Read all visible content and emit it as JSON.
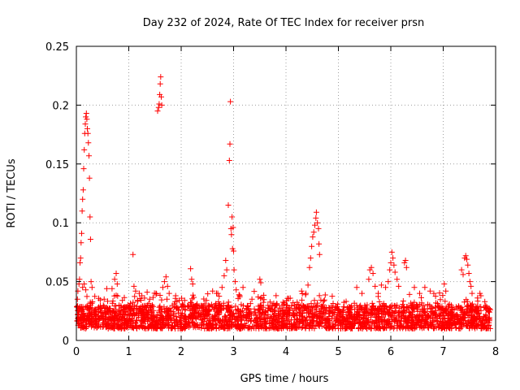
{
  "chart_data": {
    "type": "scatter",
    "title": "Day 232 of 2024, Rate Of TEC Index for receiver prsn",
    "xlabel": "GPS time / hours",
    "ylabel": "ROTI / TECUs",
    "xlim": [
      0,
      8
    ],
    "ylim": [
      0,
      0.25
    ],
    "x_ticks": [
      0,
      1,
      2,
      3,
      4,
      5,
      6,
      7,
      8
    ],
    "x_tick_labels": [
      "0",
      "1",
      "2",
      "3",
      "4",
      "5",
      "6",
      "7",
      "8"
    ],
    "y_ticks": [
      0,
      0.05,
      0.1,
      0.15,
      0.2,
      0.25
    ],
    "y_tick_labels": [
      "0",
      "0.05",
      "0.1",
      "0.15",
      "0.2",
      "0.25"
    ],
    "grid": true,
    "marker": "+",
    "marker_color": "#ff0000",
    "baseline": {
      "x_range": [
        0.0,
        7.9
      ],
      "y_range": [
        0.01,
        0.03
      ],
      "approx_point_count": 2600
    },
    "series": [
      {
        "name": "ROTI",
        "points": [
          [
            0.02,
            0.035
          ],
          [
            0.03,
            0.042
          ],
          [
            0.05,
            0.048
          ],
          [
            0.06,
            0.052
          ],
          [
            0.07,
            0.066
          ],
          [
            0.08,
            0.07
          ],
          [
            0.09,
            0.083
          ],
          [
            0.1,
            0.091
          ],
          [
            0.11,
            0.11
          ],
          [
            0.12,
            0.12
          ],
          [
            0.13,
            0.128
          ],
          [
            0.14,
            0.146
          ],
          [
            0.15,
            0.162
          ],
          [
            0.16,
            0.176
          ],
          [
            0.17,
            0.184
          ],
          [
            0.18,
            0.19
          ],
          [
            0.19,
            0.193
          ],
          [
            0.2,
            0.188
          ],
          [
            0.21,
            0.18
          ],
          [
            0.22,
            0.176
          ],
          [
            0.23,
            0.168
          ],
          [
            0.24,
            0.157
          ],
          [
            0.25,
            0.138
          ],
          [
            0.26,
            0.105
          ],
          [
            0.27,
            0.086
          ],
          [
            0.28,
            0.05
          ],
          [
            0.3,
            0.045
          ],
          [
            0.12,
            0.045
          ],
          [
            0.15,
            0.048
          ],
          [
            0.18,
            0.043
          ],
          [
            0.53,
            0.035
          ],
          [
            0.58,
            0.044
          ],
          [
            0.68,
            0.044
          ],
          [
            0.73,
            0.052
          ],
          [
            0.76,
            0.057
          ],
          [
            0.78,
            0.048
          ],
          [
            1.08,
            0.073
          ],
          [
            1.1,
            0.046
          ],
          [
            1.13,
            0.042
          ],
          [
            1.2,
            0.04
          ],
          [
            1.25,
            0.038
          ],
          [
            1.3,
            0.036
          ],
          [
            1.35,
            0.041
          ],
          [
            1.4,
            0.035
          ],
          [
            1.45,
            0.03
          ],
          [
            1.52,
            0.04
          ],
          [
            1.55,
            0.195
          ],
          [
            1.57,
            0.198
          ],
          [
            1.58,
            0.201
          ],
          [
            1.59,
            0.209
          ],
          [
            1.6,
            0.218
          ],
          [
            1.61,
            0.224
          ],
          [
            1.62,
            0.207
          ],
          [
            1.63,
            0.2
          ],
          [
            1.65,
            0.045
          ],
          [
            1.68,
            0.05
          ],
          [
            1.71,
            0.054
          ],
          [
            1.74,
            0.046
          ],
          [
            1.77,
            0.04
          ],
          [
            2.18,
            0.061
          ],
          [
            2.2,
            0.052
          ],
          [
            2.22,
            0.048
          ],
          [
            2.6,
            0.042
          ],
          [
            2.7,
            0.04
          ],
          [
            2.78,
            0.045
          ],
          [
            2.82,
            0.055
          ],
          [
            2.85,
            0.068
          ],
          [
            2.87,
            0.06
          ],
          [
            2.9,
            0.115
          ],
          [
            2.92,
            0.153
          ],
          [
            2.93,
            0.167
          ],
          [
            2.94,
            0.203
          ],
          [
            2.95,
            0.095
          ],
          [
            2.96,
            0.09
          ],
          [
            2.97,
            0.105
          ],
          [
            2.98,
            0.078
          ],
          [
            2.99,
            0.096
          ],
          [
            3.0,
            0.076
          ],
          [
            3.01,
            0.06
          ],
          [
            3.03,
            0.05
          ],
          [
            3.05,
            0.043
          ],
          [
            3.18,
            0.045
          ],
          [
            3.35,
            0.035
          ],
          [
            3.5,
            0.052
          ],
          [
            3.52,
            0.049
          ],
          [
            4.38,
            0.04
          ],
          [
            4.42,
            0.047
          ],
          [
            4.45,
            0.062
          ],
          [
            4.47,
            0.07
          ],
          [
            4.49,
            0.08
          ],
          [
            4.51,
            0.088
          ],
          [
            4.53,
            0.092
          ],
          [
            4.55,
            0.098
          ],
          [
            4.57,
            0.104
          ],
          [
            4.58,
            0.109
          ],
          [
            4.6,
            0.1
          ],
          [
            4.62,
            0.095
          ],
          [
            4.63,
            0.082
          ],
          [
            4.64,
            0.073
          ],
          [
            5.35,
            0.045
          ],
          [
            5.45,
            0.04
          ],
          [
            5.58,
            0.052
          ],
          [
            5.6,
            0.06
          ],
          [
            5.63,
            0.062
          ],
          [
            5.66,
            0.057
          ],
          [
            5.7,
            0.046
          ],
          [
            5.76,
            0.04
          ],
          [
            5.82,
            0.047
          ],
          [
            5.9,
            0.045
          ],
          [
            5.95,
            0.05
          ],
          [
            5.98,
            0.06
          ],
          [
            6.0,
            0.066
          ],
          [
            6.02,
            0.075
          ],
          [
            6.04,
            0.07
          ],
          [
            6.06,
            0.064
          ],
          [
            6.08,
            0.058
          ],
          [
            6.12,
            0.052
          ],
          [
            6.15,
            0.046
          ],
          [
            6.26,
            0.066
          ],
          [
            6.28,
            0.068
          ],
          [
            6.3,
            0.062
          ],
          [
            6.45,
            0.045
          ],
          [
            6.55,
            0.04
          ],
          [
            6.65,
            0.045
          ],
          [
            6.75,
            0.042
          ],
          [
            6.82,
            0.04
          ],
          [
            7.02,
            0.048
          ],
          [
            7.05,
            0.042
          ],
          [
            7.35,
            0.06
          ],
          [
            7.38,
            0.056
          ],
          [
            7.41,
            0.07
          ],
          [
            7.43,
            0.072
          ],
          [
            7.45,
            0.069
          ],
          [
            7.47,
            0.064
          ],
          [
            7.49,
            0.057
          ],
          [
            7.51,
            0.05
          ],
          [
            7.53,
            0.046
          ],
          [
            7.55,
            0.04
          ],
          [
            7.7,
            0.04
          ],
          [
            7.72,
            0.038
          ]
        ]
      }
    ]
  }
}
